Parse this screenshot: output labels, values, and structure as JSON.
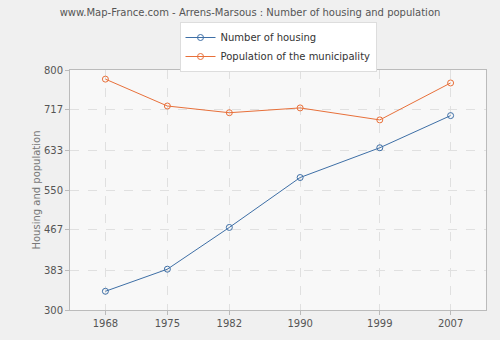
{
  "chart_data": {
    "type": "line",
    "title": "www.Map-France.com - Arrens-Marsous : Number of housing and population",
    "y_label": "Housing and population",
    "x": [
      1968,
      1975,
      1982,
      1990,
      1999,
      2007
    ],
    "series": [
      {
        "name": "Number of housing",
        "color": "#3e6fa6",
        "values": [
          339,
          385,
          472,
          576,
          638,
          705
        ]
      },
      {
        "name": "Population of the municipality",
        "color": "#e8703a",
        "values": [
          781,
          725,
          711,
          721,
          696,
          773
        ]
      }
    ],
    "xlim": [
      1964,
      2011
    ],
    "xticks": [
      1968,
      1975,
      1982,
      1990,
      1999,
      2007
    ],
    "ylim": [
      300,
      800
    ],
    "yticks": [
      300,
      383,
      467,
      550,
      633,
      717,
      800
    ],
    "grid": true,
    "legend": "top",
    "marker": "circle-open",
    "line_style": "solid"
  }
}
